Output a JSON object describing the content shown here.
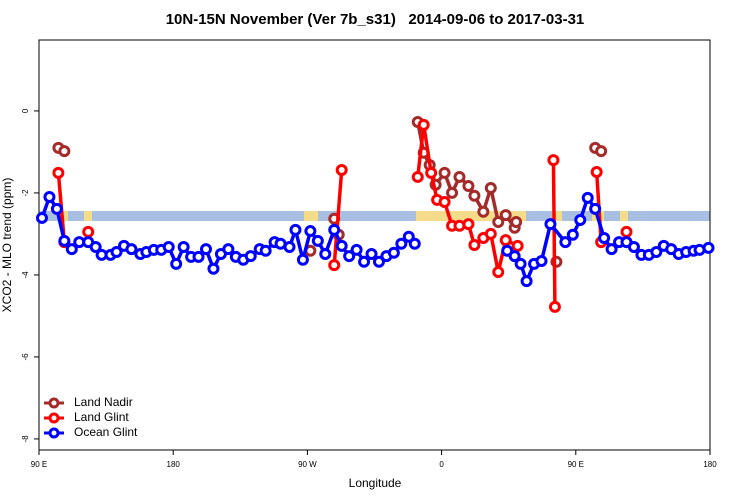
{
  "chart_data": {
    "type": "line",
    "title": "10N-15N November (Ver 7b_s31)   2014-09-06 to 2017-03-31",
    "xlabel": "Longitude",
    "ylabel": "XCO2 - MLO trend (ppm)",
    "xlim": [
      90,
      540
    ],
    "xticks": [
      {
        "value": 90,
        "label": "90 E"
      },
      {
        "value": 180,
        "label": "180"
      },
      {
        "value": 270,
        "label": "90 W"
      },
      {
        "value": 360,
        "label": "0"
      },
      {
        "value": 450,
        "label": "90 E"
      },
      {
        "value": 540,
        "label": "180"
      }
    ],
    "ylim": [
      -8.27,
      1.73
    ],
    "yticks": [
      0,
      -2,
      -4,
      -6,
      -8
    ],
    "legend": "bottom-left",
    "series": [
      {
        "name": "Land Nadir",
        "color": "#a52a2a",
        "x": [
          103,
          107,
          null,
          272,
          null,
          288,
          291,
          null,
          344,
          348,
          352,
          356,
          362,
          367,
          372,
          378,
          382,
          388,
          393,
          398,
          403,
          409,
          410,
          null,
          437,
          null,
          463,
          467
        ],
        "values": [
          -0.9,
          -0.98,
          null,
          -3.41,
          null,
          -2.63,
          -3.02,
          null,
          -0.27,
          -1.02,
          -1.32,
          -1.8,
          -1.51,
          -2.0,
          -1.61,
          -1.83,
          -2.07,
          -2.46,
          -1.88,
          -2.71,
          -2.54,
          -2.85,
          -2.71,
          null,
          -3.68,
          null,
          -0.9,
          -0.98
        ]
      },
      {
        "name": "Land Glint",
        "color": "#ff0000",
        "x": [
          103,
          107,
          null,
          123,
          null,
          288,
          293,
          null,
          344,
          348,
          353,
          357,
          362,
          367,
          372,
          378,
          382,
          388,
          393,
          398,
          403,
          411,
          null,
          435,
          436,
          null,
          464,
          467,
          null,
          484
        ],
        "values": [
          -1.51,
          -3.2,
          null,
          -2.95,
          null,
          -3.76,
          -1.44,
          null,
          -1.61,
          -0.34,
          -1.51,
          -2.17,
          -2.22,
          -2.8,
          -2.8,
          -2.76,
          -3.27,
          -3.1,
          -3.0,
          -3.93,
          -3.15,
          -3.29,
          null,
          -1.2,
          -4.78,
          null,
          -1.49,
          -3.2,
          null,
          -2.95
        ]
      },
      {
        "name": "Ocean Glint",
        "color": "#0000ff",
        "x": [
          92,
          97,
          102,
          107,
          112,
          117,
          123,
          128,
          132,
          138,
          142,
          147,
          152,
          158,
          162,
          167,
          172,
          177,
          182,
          187,
          192,
          197,
          202,
          207,
          212,
          217,
          222,
          227,
          232,
          238,
          242,
          248,
          252,
          258,
          262,
          267,
          272,
          277,
          282,
          288,
          293,
          298,
          303,
          308,
          313,
          318,
          323,
          328,
          333,
          338,
          342,
          null,
          404,
          409,
          413,
          417,
          422,
          427,
          433,
          443,
          448,
          453,
          458,
          463,
          469,
          474,
          479,
          484,
          489,
          494,
          499,
          504,
          509,
          514,
          519,
          524,
          529,
          533,
          539
        ],
        "values": [
          -2.61,
          -2.1,
          -2.39,
          -3.17,
          -3.37,
          -3.2,
          -3.2,
          -3.32,
          -3.51,
          -3.51,
          -3.44,
          -3.29,
          -3.37,
          -3.49,
          -3.44,
          -3.39,
          -3.39,
          -3.32,
          -3.73,
          -3.32,
          -3.56,
          -3.56,
          -3.37,
          -3.85,
          -3.49,
          -3.37,
          -3.56,
          -3.63,
          -3.54,
          -3.37,
          -3.41,
          -3.2,
          -3.24,
          -3.32,
          -2.9,
          -3.63,
          -2.93,
          -3.17,
          -3.49,
          -2.9,
          -3.29,
          -3.54,
          -3.39,
          -3.68,
          -3.49,
          -3.68,
          -3.54,
          -3.46,
          -3.24,
          -3.07,
          -3.24,
          null,
          -3.41,
          -3.54,
          -3.73,
          -4.15,
          -3.73,
          -3.66,
          -2.76,
          -3.2,
          -3.02,
          -2.66,
          -2.12,
          -2.39,
          -3.1,
          -3.37,
          -3.2,
          -3.2,
          -3.32,
          -3.51,
          -3.51,
          -3.44,
          -3.29,
          -3.37,
          -3.49,
          -3.44,
          -3.41,
          -3.39,
          -3.34
        ]
      }
    ]
  }
}
